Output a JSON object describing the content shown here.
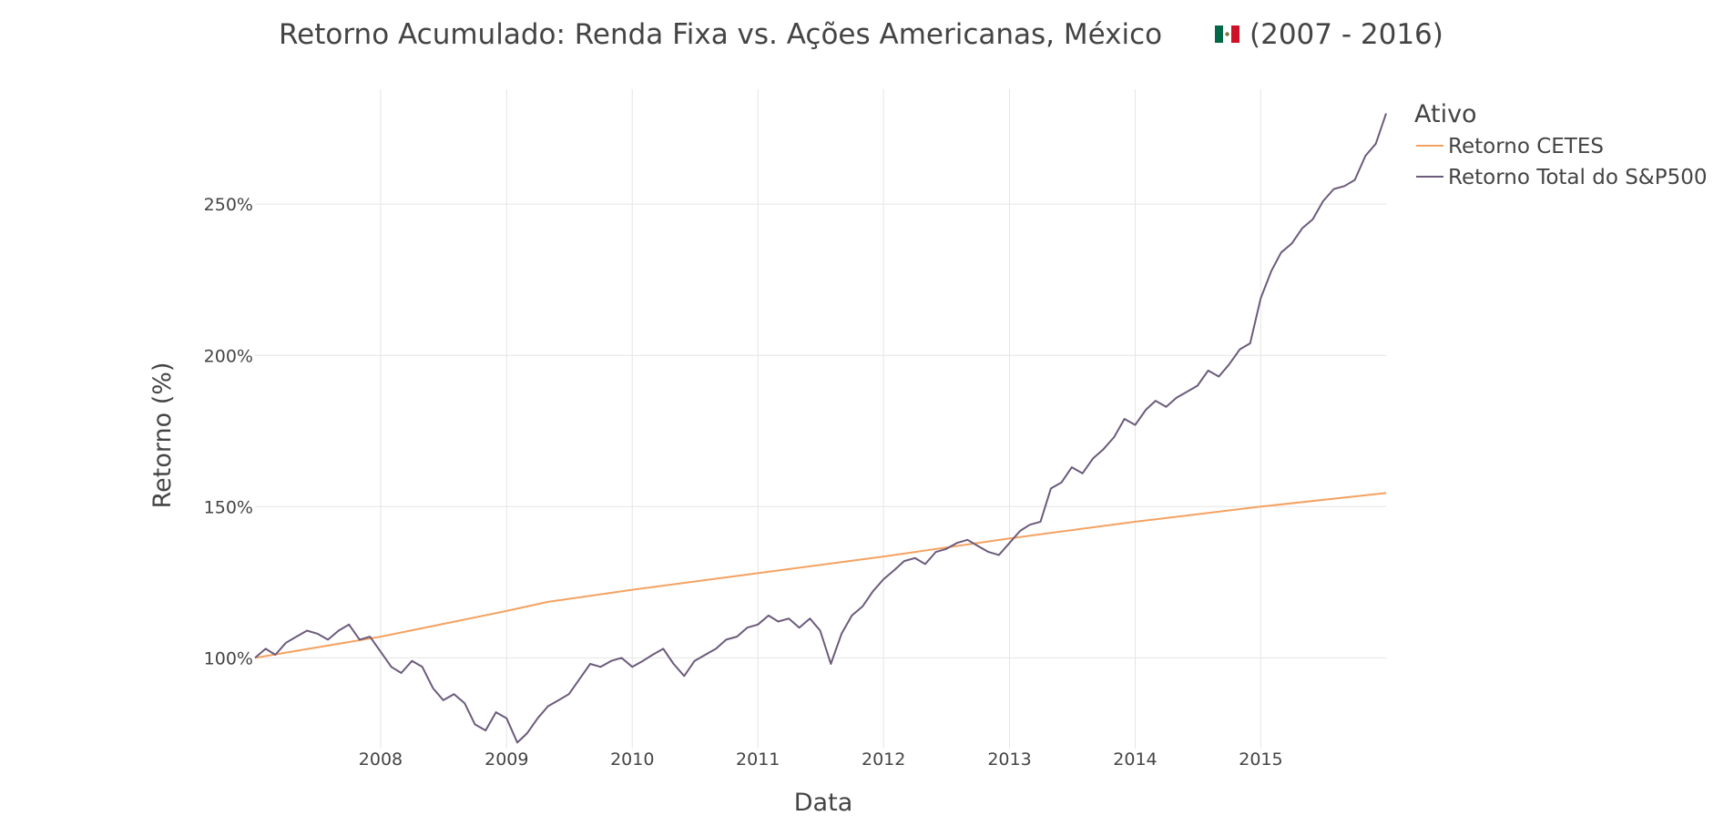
{
  "chart_data": {
    "type": "line",
    "title_prefix": "Retorno Acumulado: Renda Fixa vs. Ações Americanas, México",
    "title_suffix": "(2007 - 2016)",
    "flag": "mexico-flag-icon",
    "xlabel": "Data",
    "ylabel": "Retorno (%)",
    "xlim": [
      "2007-01-01",
      "2015-12-31"
    ],
    "ylim": [
      0.7,
      2.88
    ],
    "x_ticks": [
      "2008",
      "2009",
      "2010",
      "2011",
      "2012",
      "2013",
      "2014",
      "2015"
    ],
    "y_ticks": [
      {
        "value": 1.0,
        "label": "100%"
      },
      {
        "value": 1.5,
        "label": "150%"
      },
      {
        "value": 2.0,
        "label": "200%"
      },
      {
        "value": 2.5,
        "label": "250%"
      }
    ],
    "grid": true,
    "legend": {
      "title": "Ativo",
      "placement": "top-right outside"
    },
    "series": [
      {
        "name": "Retorno CETES",
        "color": "#f4a261",
        "x": [
          "2007-01-01",
          "2008-01-01",
          "2009-01-01",
          "2009-05-01",
          "2010-01-01",
          "2011-01-01",
          "2012-01-01",
          "2013-01-01",
          "2014-01-01",
          "2015-01-01",
          "2015-12-31"
        ],
        "y": [
          1.0,
          1.07,
          1.155,
          1.185,
          1.225,
          1.28,
          1.335,
          1.395,
          1.45,
          1.5,
          1.545
        ]
      },
      {
        "name": "Retorno Total do S&P500",
        "color": "#6b5b7b",
        "x": [
          "2007-01-01",
          "2007-02-01",
          "2007-03-01",
          "2007-04-01",
          "2007-05-01",
          "2007-06-01",
          "2007-07-01",
          "2007-08-01",
          "2007-09-01",
          "2007-10-01",
          "2007-11-01",
          "2007-12-01",
          "2008-01-01",
          "2008-02-01",
          "2008-03-01",
          "2008-04-01",
          "2008-05-01",
          "2008-06-01",
          "2008-07-01",
          "2008-08-01",
          "2008-09-01",
          "2008-10-01",
          "2008-11-01",
          "2008-12-01",
          "2009-01-01",
          "2009-02-01",
          "2009-03-01",
          "2009-04-01",
          "2009-05-01",
          "2009-06-01",
          "2009-07-01",
          "2009-08-01",
          "2009-09-01",
          "2009-10-01",
          "2009-11-01",
          "2009-12-01",
          "2010-01-01",
          "2010-02-01",
          "2010-03-01",
          "2010-04-01",
          "2010-05-01",
          "2010-06-01",
          "2010-07-01",
          "2010-08-01",
          "2010-09-01",
          "2010-10-01",
          "2010-11-01",
          "2010-12-01",
          "2011-01-01",
          "2011-02-01",
          "2011-03-01",
          "2011-04-01",
          "2011-05-01",
          "2011-06-01",
          "2011-07-01",
          "2011-08-01",
          "2011-09-01",
          "2011-10-01",
          "2011-11-01",
          "2011-12-01",
          "2012-01-01",
          "2012-02-01",
          "2012-03-01",
          "2012-04-01",
          "2012-05-01",
          "2012-06-01",
          "2012-07-01",
          "2012-08-01",
          "2012-09-01",
          "2012-10-01",
          "2012-11-01",
          "2012-12-01",
          "2013-01-01",
          "2013-02-01",
          "2013-03-01",
          "2013-04-01",
          "2013-05-01",
          "2013-06-01",
          "2013-07-01",
          "2013-08-01",
          "2013-09-01",
          "2013-10-01",
          "2013-11-01",
          "2013-12-01",
          "2014-01-01",
          "2014-02-01",
          "2014-03-01",
          "2014-04-01",
          "2014-05-01",
          "2014-06-01",
          "2014-07-01",
          "2014-08-01",
          "2014-09-01",
          "2014-10-01",
          "2014-11-01",
          "2014-12-01",
          "2015-01-01",
          "2015-02-01",
          "2015-03-01",
          "2015-04-01",
          "2015-05-01",
          "2015-06-01",
          "2015-07-01",
          "2015-08-01",
          "2015-09-01",
          "2015-10-01",
          "2015-11-01",
          "2015-12-01",
          "2015-12-31"
        ],
        "y": [
          1.0,
          1.03,
          1.01,
          1.05,
          1.07,
          1.09,
          1.08,
          1.06,
          1.09,
          1.11,
          1.06,
          1.07,
          1.02,
          0.97,
          0.95,
          0.99,
          0.97,
          0.9,
          0.86,
          0.88,
          0.85,
          0.78,
          0.76,
          0.82,
          0.8,
          0.72,
          0.75,
          0.8,
          0.84,
          0.86,
          0.88,
          0.93,
          0.98,
          0.97,
          0.99,
          1.0,
          0.97,
          0.99,
          1.01,
          1.03,
          0.98,
          0.94,
          0.99,
          1.01,
          1.03,
          1.06,
          1.07,
          1.1,
          1.11,
          1.14,
          1.12,
          1.13,
          1.1,
          1.13,
          1.09,
          0.98,
          1.08,
          1.14,
          1.17,
          1.22,
          1.26,
          1.29,
          1.32,
          1.33,
          1.31,
          1.35,
          1.36,
          1.38,
          1.39,
          1.37,
          1.35,
          1.34,
          1.38,
          1.42,
          1.44,
          1.45,
          1.56,
          1.58,
          1.63,
          1.61,
          1.66,
          1.69,
          1.73,
          1.79,
          1.77,
          1.82,
          1.85,
          1.83,
          1.86,
          1.88,
          1.9,
          1.95,
          1.93,
          1.97,
          2.02,
          2.04,
          2.19,
          2.28,
          2.34,
          2.37,
          2.42,
          2.45,
          2.51,
          2.55,
          2.56,
          2.58,
          2.66,
          2.7,
          2.8
        ]
      }
    ]
  }
}
